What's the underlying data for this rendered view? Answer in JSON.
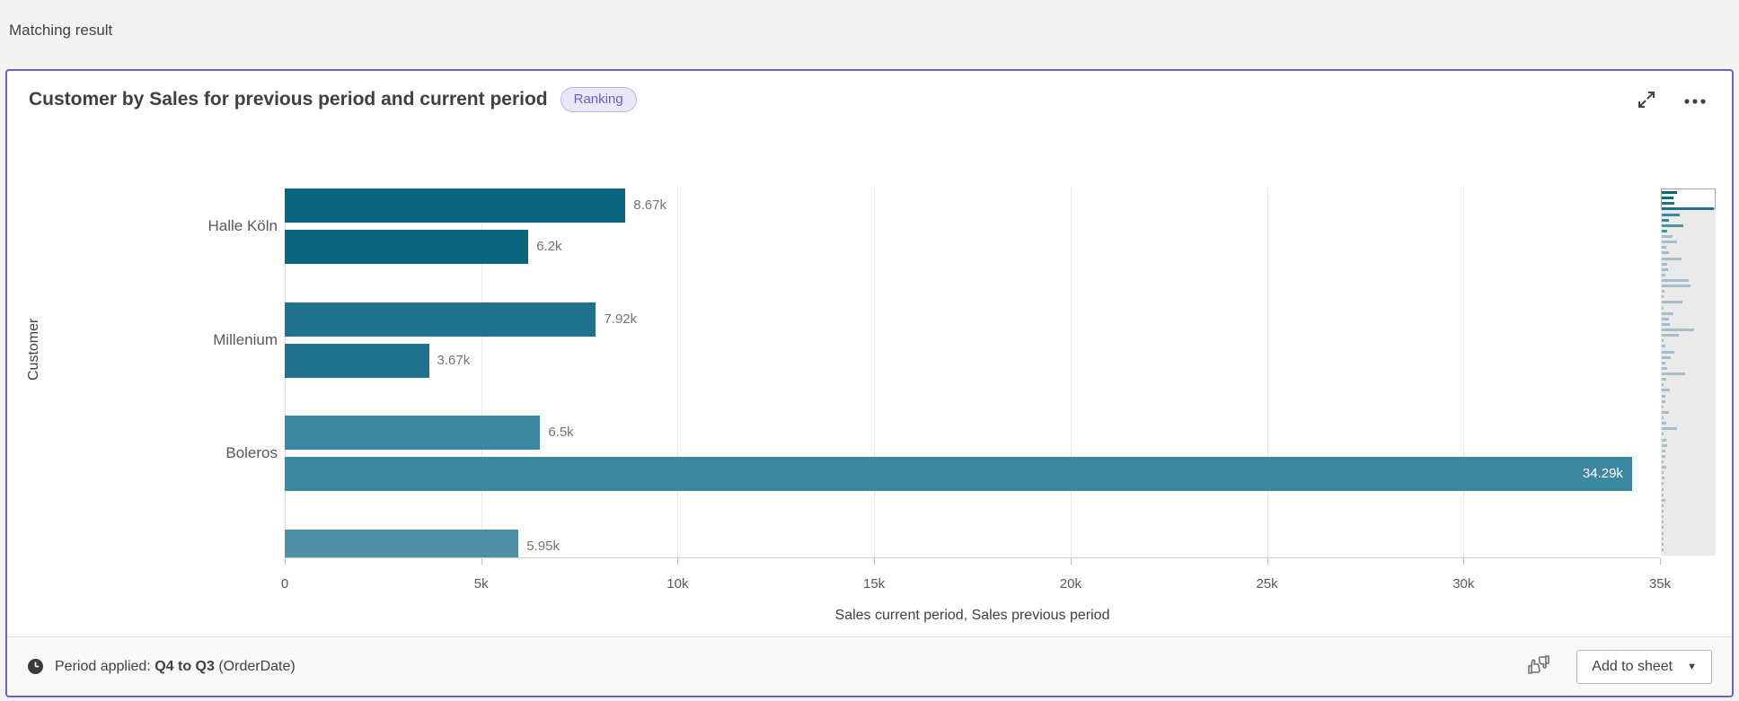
{
  "page": {
    "header": "Matching result",
    "background": "#f3f3f3"
  },
  "card": {
    "title": "Customer by Sales for previous period and current period",
    "badge": "Ranking",
    "accent_color": "#6b5ec9",
    "icons": {
      "expand": "expand-icon",
      "more": "more-menu-icon"
    }
  },
  "chart_data": {
    "type": "bar",
    "orientation": "horizontal",
    "title": "Customer by Sales for previous period and current period",
    "xlabel": "Sales current period, Sales previous period",
    "ylabel": "Customer",
    "x_max": 35000,
    "x_ticks": [
      "0",
      "5k",
      "10k",
      "15k",
      "20k",
      "25k",
      "30k",
      "35k"
    ],
    "x_tick_values": [
      0,
      5000,
      10000,
      15000,
      20000,
      25000,
      30000,
      35000
    ],
    "grid": true,
    "categories": [
      "Halle Köln",
      "Millenium",
      "Boleros",
      ""
    ],
    "series": [
      {
        "name": "Sales current period",
        "values": [
          8670,
          7920,
          6500,
          5950
        ]
      },
      {
        "name": "Sales previous period",
        "values": [
          6200,
          3670,
          34290,
          null
        ]
      }
    ],
    "customers": [
      {
        "name": "Halle Köln",
        "current": 8670,
        "previous": 6200,
        "current_label": "8.67k",
        "previous_label": "6.2k",
        "color": "#0a657f"
      },
      {
        "name": "Millenium",
        "current": 7920,
        "previous": 3670,
        "current_label": "7.92k",
        "previous_label": "3.67k",
        "color": "#20718d"
      },
      {
        "name": "Boleros",
        "current": 6500,
        "previous": 34290,
        "current_label": "6.5k",
        "previous_label": "34.29k",
        "previous_label_inside": true,
        "color": "#3c87a0"
      },
      {
        "name": "",
        "current": 5950,
        "previous": null,
        "current_label": "5.95k",
        "previous_label": null,
        "clipped": true,
        "color": "#4f90a5"
      }
    ],
    "navigator": {
      "teal_shades": [
        "#0a657f",
        "#0a657f",
        "#20718d",
        "#20718d",
        "#3c87a0",
        "#3c87a0",
        "#4f90a5",
        "#4f90a5"
      ],
      "rest_color": "#a8bdc8",
      "bar_widths": [
        0.3,
        0.22,
        0.24,
        1.0,
        0.35,
        0.14,
        0.42,
        0.11,
        0.2,
        0.3,
        0.08,
        0.14,
        0.38,
        0.1,
        0.12,
        0.07,
        0.52,
        0.55,
        0.05,
        0.03,
        0.4,
        0.04,
        0.22,
        0.13,
        0.15,
        0.62,
        0.33,
        0.03,
        0.06,
        0.24,
        0.17,
        0.06,
        0.11,
        0.45,
        0.09,
        0.04,
        0.15,
        0.07,
        0.06,
        0.03,
        0.13,
        0.04,
        0.08,
        0.3,
        0.04,
        0.09,
        0.11,
        0.06,
        0.07,
        0.03,
        0.09,
        0.04,
        0.05,
        0.02,
        0.04,
        0.02,
        0.06,
        0.02,
        0.03,
        0.01,
        0.02,
        0.01,
        0.03,
        0.01,
        0.02,
        0.01
      ]
    }
  },
  "footer": {
    "period_prefix": "Period applied:",
    "period_value": "Q4 to Q3",
    "period_suffix": "(OrderDate)",
    "add_to_sheet": "Add to sheet",
    "caret": "▼"
  }
}
